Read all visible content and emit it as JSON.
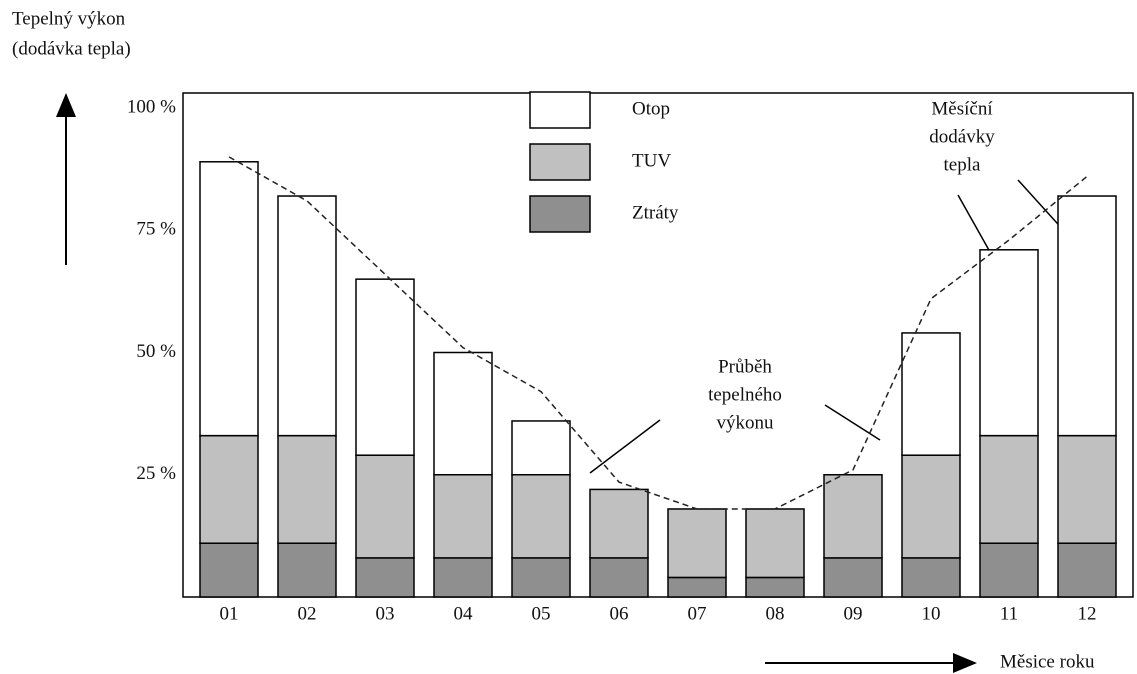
{
  "chart_data": {
    "type": "bar",
    "stacked": true,
    "y_label_lines": [
      "Tepelný výkon",
      "(dodávka tepla)"
    ],
    "x_label": "Měsice roku",
    "categories": [
      "01",
      "02",
      "03",
      "04",
      "05",
      "06",
      "07",
      "08",
      "09",
      "10",
      "11",
      "12"
    ],
    "series": [
      {
        "name": "Ztráty",
        "color": "#8f8f8f",
        "values": [
          11,
          11,
          8,
          8,
          8,
          8,
          4,
          4,
          8,
          8,
          11,
          11
        ]
      },
      {
        "name": "TUV",
        "color": "#c0c0c0",
        "values": [
          22,
          22,
          21,
          17,
          17,
          14,
          14,
          14,
          17,
          21,
          22,
          22
        ]
      },
      {
        "name": "Otop",
        "color": "#ffffff",
        "values": [
          56,
          49,
          36,
          25,
          11,
          0,
          0,
          0,
          0,
          25,
          38,
          49
        ]
      }
    ],
    "line": {
      "type": "line",
      "dashed": true,
      "color": "#222222",
      "values": [
        90,
        81,
        66,
        51,
        42,
        23.5,
        18,
        18,
        26,
        61,
        73,
        86
      ]
    },
    "ylim": [
      0,
      100
    ],
    "yticks": [
      {
        "value": 25,
        "label": "25 %"
      },
      {
        "value": 50,
        "label": "50 %"
      },
      {
        "value": 75,
        "label": "75 %"
      },
      {
        "value": 100,
        "label": "100 %"
      }
    ],
    "legend_order": [
      2,
      1,
      0
    ],
    "annotations": [
      {
        "lines": [
          "Průběh",
          "tepelného",
          "výkonu"
        ]
      },
      {
        "lines": [
          "Měsíční",
          "dodávky",
          "tepla"
        ]
      }
    ]
  }
}
